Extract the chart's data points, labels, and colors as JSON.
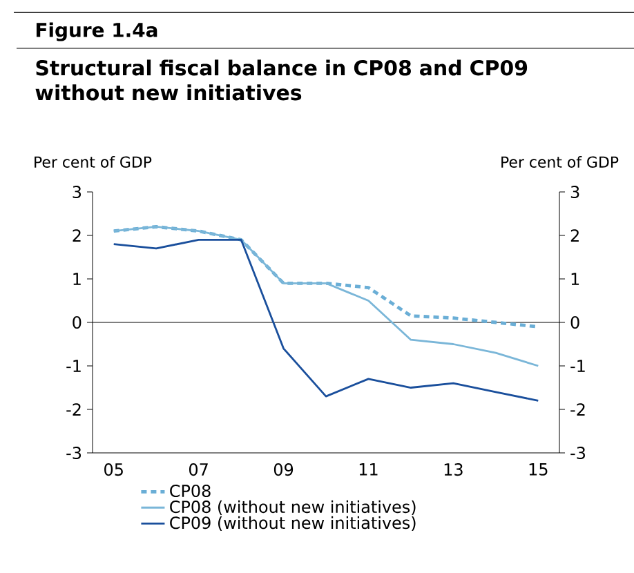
{
  "chart_data": {
    "type": "line",
    "title": "Figure 1.4a",
    "subtitle": "Structural fiscal balance in CP08 and CP09 without new initiatives",
    "ylabel": "Per cent of GDP",
    "y2label": "Per cent of GDP",
    "categories": [
      "05",
      null,
      "07",
      null,
      "09",
      null,
      "11",
      null,
      "13",
      null,
      "15"
    ],
    "ylim": [
      -3,
      3
    ],
    "yticks": [
      -3,
      -2,
      -1,
      0,
      1,
      2,
      3
    ],
    "y2lim": [
      -3,
      3
    ],
    "y2ticks": [
      -3,
      -2,
      -1,
      0,
      1,
      2,
      3
    ],
    "grid": false,
    "legend": "bottom",
    "marker": "none",
    "ref_lines": [
      {
        "axis": "y",
        "value": 0,
        "color": "#000000"
      }
    ],
    "series": [
      {
        "name": "CP08",
        "color": "#6aaed6",
        "line_style": "dashed",
        "values": [
          2.1,
          2.2,
          2.1,
          1.9,
          0.9,
          0.9,
          0.8,
          0.15,
          0.1,
          0.0,
          -0.1
        ]
      },
      {
        "name": "CP08 (without new initiatives)",
        "color": "#7ab6d8",
        "line_style": "solid",
        "values": [
          2.1,
          2.2,
          2.1,
          1.9,
          0.9,
          0.9,
          0.5,
          -0.4,
          -0.5,
          -0.7,
          -1.0
        ]
      },
      {
        "name": "CP09 (without new initiatives)",
        "color": "#1a4f9c",
        "line_style": "solid",
        "values": [
          1.8,
          1.7,
          1.9,
          1.9,
          -0.6,
          -1.7,
          -1.3,
          -1.5,
          -1.4,
          -1.6,
          -1.8
        ]
      }
    ]
  }
}
